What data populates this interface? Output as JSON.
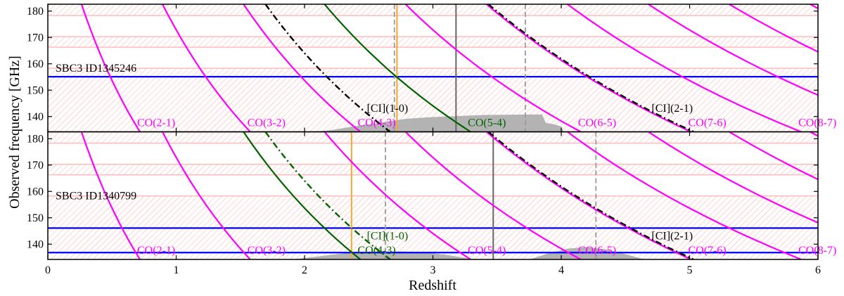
{
  "chart_data": {
    "type": "line",
    "xlabel": "Redshift",
    "ylabel": "Observed frequency [GHz]",
    "xlim": [
      0,
      6
    ],
    "ylim": [
      134.2,
      182.6
    ],
    "xticks": [
      "0",
      "1",
      "2",
      "3",
      "4",
      "5",
      "6"
    ],
    "yticks": [
      "140",
      "150",
      "160",
      "170",
      "180"
    ],
    "grid": false,
    "colors": {
      "co_line": "#ff00ff",
      "matched_line": "#006400",
      "ci_line": "#000000",
      "observed_line": "#0000ff",
      "best_redshift": "#f0a830",
      "photz": "#666666",
      "photz_range": "#999999",
      "hatch": "#ffaaaa",
      "histogram": "#b3b3b3"
    },
    "hatched_bands_ghz": [
      [
        134.2,
        158.3
      ],
      [
        166.3,
        170.3
      ],
      [
        178.3,
        182.6
      ]
    ],
    "lines": [
      {
        "id": "co21",
        "label": "CO(2-1)",
        "rest_ghz": 230.538,
        "kind": "CO"
      },
      {
        "id": "co32",
        "label": "CO(3-2)",
        "rest_ghz": 345.796,
        "kind": "CO"
      },
      {
        "id": "co43",
        "label": "CO(4-3)",
        "rest_ghz": 461.041,
        "kind": "CO"
      },
      {
        "id": "co54",
        "label": "CO(5-4)",
        "rest_ghz": 576.268,
        "kind": "CO"
      },
      {
        "id": "co65",
        "label": "CO(6-5)",
        "rest_ghz": 691.473,
        "kind": "CO"
      },
      {
        "id": "co76",
        "label": "CO(7-6)",
        "rest_ghz": 806.652,
        "kind": "CO"
      },
      {
        "id": "co87",
        "label": "CO(8-7)",
        "rest_ghz": 921.8,
        "kind": "CO"
      },
      {
        "id": "co98",
        "label": "",
        "rest_ghz": 1036.912,
        "kind": "CO"
      },
      {
        "id": "co109",
        "label": "",
        "rest_ghz": 1151.985,
        "kind": "CO"
      },
      {
        "id": "co1110",
        "label": "",
        "rest_ghz": 1267.014,
        "kind": "CO"
      },
      {
        "id": "ci10",
        "label": "[CI](1-0)",
        "rest_ghz": 492.161,
        "kind": "CI"
      },
      {
        "id": "ci21",
        "label": "[CI](2-1)",
        "rest_ghz": 809.342,
        "kind": "CI"
      }
    ],
    "panels": [
      {
        "source": "SBC3 ID1345246",
        "observed_ghz": [
          155.1
        ],
        "matched": [
          "co54"
        ],
        "z_best": 2.72,
        "z_phot": 3.18,
        "z_phot_range": [
          2.7,
          3.72
        ],
        "histogram": [
          [
            2.05,
            134.2
          ],
          [
            2.2,
            134.8
          ],
          [
            2.4,
            136.4
          ],
          [
            2.6,
            137.8
          ],
          [
            2.8,
            139.2
          ],
          [
            3.0,
            139.8
          ],
          [
            3.2,
            140.2
          ],
          [
            3.4,
            140.6
          ],
          [
            3.6,
            140.7
          ],
          [
            3.85,
            140.8
          ],
          [
            3.88,
            137.6
          ],
          [
            3.95,
            137.0
          ],
          [
            4.0,
            136.2
          ],
          [
            4.02,
            134.2
          ]
        ]
      },
      {
        "source": "SBC3 ID1340799",
        "observed_ghz": [
          146.1,
          136.8
        ],
        "matched": [
          "co43",
          "ci10"
        ],
        "z_best": 2.366,
        "z_phot": 3.47,
        "z_phot_range": [
          2.63,
          4.27
        ],
        "histogram": [
          [
            1.9,
            134.2
          ],
          [
            2.1,
            135.3
          ],
          [
            2.3,
            136.5
          ],
          [
            2.5,
            137.1
          ],
          [
            2.7,
            137.3
          ],
          [
            2.9,
            137.0
          ],
          [
            3.1,
            136.0
          ],
          [
            3.3,
            134.4
          ],
          [
            3.5,
            134.2
          ],
          [
            3.75,
            134.2
          ],
          [
            3.9,
            136.5
          ],
          [
            4.05,
            138.3
          ],
          [
            4.2,
            138.9
          ],
          [
            4.35,
            138.0
          ],
          [
            4.5,
            136.2
          ],
          [
            4.65,
            134.2
          ]
        ]
      }
    ]
  }
}
